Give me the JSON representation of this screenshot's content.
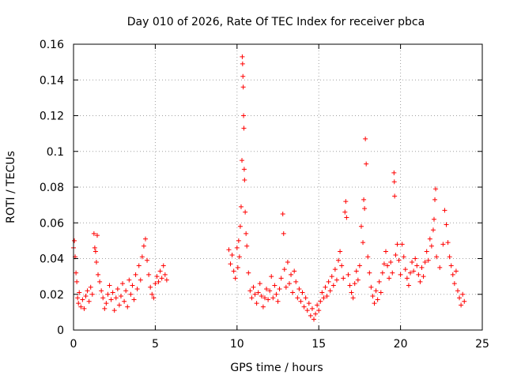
{
  "chart_data": {
    "type": "scatter",
    "title": "Day 010 of 2026, Rate Of TEC Index for receiver pbca",
    "xlabel": "GPS time / hours",
    "ylabel": "ROTI / TECUs",
    "xlim": [
      0,
      25
    ],
    "ylim": [
      0,
      0.16
    ],
    "xticks": [
      0,
      5,
      10,
      15,
      20,
      25
    ],
    "yticks": [
      0,
      0.02,
      0.04,
      0.06,
      0.08,
      0.1,
      0.12,
      0.14,
      0.16
    ],
    "xtick_labels": [
      "0",
      "5",
      "10",
      "15",
      "20",
      "25"
    ],
    "ytick_labels": [
      "0",
      "0.02",
      "0.04",
      "0.06",
      "0.08",
      "0.1",
      "0.12",
      "0.14",
      "0.16"
    ],
    "grid": true,
    "marker": "+",
    "color": "#ff0000",
    "series": [
      {
        "name": "ROTI",
        "points": [
          [
            0.0,
            0.046
          ],
          [
            0.05,
            0.05
          ],
          [
            0.1,
            0.041
          ],
          [
            0.15,
            0.032
          ],
          [
            0.2,
            0.027
          ],
          [
            0.25,
            0.018
          ],
          [
            0.3,
            0.015
          ],
          [
            0.35,
            0.021
          ],
          [
            0.45,
            0.013
          ],
          [
            0.55,
            0.017
          ],
          [
            0.65,
            0.012
          ],
          [
            0.75,
            0.019
          ],
          [
            0.85,
            0.022
          ],
          [
            0.95,
            0.016
          ],
          [
            1.05,
            0.024
          ],
          [
            1.15,
            0.02
          ],
          [
            1.25,
            0.054
          ],
          [
            1.3,
            0.046
          ],
          [
            1.35,
            0.044
          ],
          [
            1.4,
            0.038
          ],
          [
            1.45,
            0.053
          ],
          [
            1.5,
            0.031
          ],
          [
            1.6,
            0.027
          ],
          [
            1.7,
            0.022
          ],
          [
            1.8,
            0.018
          ],
          [
            1.9,
            0.012
          ],
          [
            2.0,
            0.015
          ],
          [
            2.1,
            0.02
          ],
          [
            2.2,
            0.025
          ],
          [
            2.3,
            0.017
          ],
          [
            2.4,
            0.021
          ],
          [
            2.5,
            0.011
          ],
          [
            2.6,
            0.018
          ],
          [
            2.7,
            0.023
          ],
          [
            2.8,
            0.014
          ],
          [
            2.9,
            0.019
          ],
          [
            3.0,
            0.026
          ],
          [
            3.1,
            0.016
          ],
          [
            3.2,
            0.022
          ],
          [
            3.3,
            0.013
          ],
          [
            3.4,
            0.028
          ],
          [
            3.5,
            0.02
          ],
          [
            3.6,
            0.025
          ],
          [
            3.7,
            0.017
          ],
          [
            3.8,
            0.031
          ],
          [
            3.9,
            0.023
          ],
          [
            4.0,
            0.036
          ],
          [
            4.1,
            0.028
          ],
          [
            4.2,
            0.041
          ],
          [
            4.3,
            0.047
          ],
          [
            4.4,
            0.051
          ],
          [
            4.5,
            0.039
          ],
          [
            4.6,
            0.031
          ],
          [
            4.7,
            0.024
          ],
          [
            4.8,
            0.02
          ],
          [
            4.9,
            0.018
          ],
          [
            5.0,
            0.026
          ],
          [
            5.1,
            0.03
          ],
          [
            5.2,
            0.027
          ],
          [
            5.3,
            0.033
          ],
          [
            5.4,
            0.029
          ],
          [
            5.5,
            0.036
          ],
          [
            5.6,
            0.031
          ],
          [
            5.7,
            0.028
          ],
          [
            9.5,
            0.045
          ],
          [
            9.6,
            0.037
          ],
          [
            9.7,
            0.042
          ],
          [
            9.8,
            0.033
          ],
          [
            9.9,
            0.029
          ],
          [
            10.0,
            0.046
          ],
          [
            10.05,
            0.035
          ],
          [
            10.1,
            0.05
          ],
          [
            10.15,
            0.041
          ],
          [
            10.2,
            0.058
          ],
          [
            10.25,
            0.069
          ],
          [
            10.3,
            0.095
          ],
          [
            10.32,
            0.153
          ],
          [
            10.34,
            0.149
          ],
          [
            10.36,
            0.142
          ],
          [
            10.38,
            0.136
          ],
          [
            10.4,
            0.12
          ],
          [
            10.42,
            0.113
          ],
          [
            10.44,
            0.09
          ],
          [
            10.46,
            0.084
          ],
          [
            10.5,
            0.066
          ],
          [
            10.55,
            0.054
          ],
          [
            10.6,
            0.047
          ],
          [
            10.7,
            0.032
          ],
          [
            10.8,
            0.022
          ],
          [
            10.9,
            0.018
          ],
          [
            11.0,
            0.024
          ],
          [
            11.1,
            0.02
          ],
          [
            11.2,
            0.015
          ],
          [
            11.3,
            0.021
          ],
          [
            11.4,
            0.026
          ],
          [
            11.5,
            0.019
          ],
          [
            11.6,
            0.013
          ],
          [
            11.7,
            0.018
          ],
          [
            11.8,
            0.023
          ],
          [
            11.9,
            0.017
          ],
          [
            12.0,
            0.022
          ],
          [
            12.1,
            0.03
          ],
          [
            12.2,
            0.018
          ],
          [
            12.3,
            0.025
          ],
          [
            12.4,
            0.02
          ],
          [
            12.5,
            0.016
          ],
          [
            12.6,
            0.023
          ],
          [
            12.7,
            0.029
          ],
          [
            12.8,
            0.065
          ],
          [
            12.85,
            0.054
          ],
          [
            12.9,
            0.034
          ],
          [
            13.0,
            0.024
          ],
          [
            13.1,
            0.038
          ],
          [
            13.2,
            0.026
          ],
          [
            13.3,
            0.031
          ],
          [
            13.4,
            0.021
          ],
          [
            13.5,
            0.033
          ],
          [
            13.6,
            0.027
          ],
          [
            13.7,
            0.018
          ],
          [
            13.8,
            0.023
          ],
          [
            13.9,
            0.016
          ],
          [
            14.0,
            0.021
          ],
          [
            14.1,
            0.013
          ],
          [
            14.2,
            0.018
          ],
          [
            14.3,
            0.011
          ],
          [
            14.4,
            0.015
          ],
          [
            14.5,
            0.008
          ],
          [
            14.6,
            0.012
          ],
          [
            14.7,
            0.006
          ],
          [
            14.8,
            0.009
          ],
          [
            14.9,
            0.014
          ],
          [
            15.0,
            0.011
          ],
          [
            15.1,
            0.016
          ],
          [
            15.2,
            0.021
          ],
          [
            15.3,
            0.018
          ],
          [
            15.4,
            0.024
          ],
          [
            15.5,
            0.019
          ],
          [
            15.6,
            0.027
          ],
          [
            15.7,
            0.022
          ],
          [
            15.8,
            0.03
          ],
          [
            15.9,
            0.025
          ],
          [
            16.0,
            0.034
          ],
          [
            16.1,
            0.028
          ],
          [
            16.2,
            0.039
          ],
          [
            16.3,
            0.044
          ],
          [
            16.4,
            0.036
          ],
          [
            16.5,
            0.029
          ],
          [
            16.6,
            0.066
          ],
          [
            16.65,
            0.072
          ],
          [
            16.7,
            0.063
          ],
          [
            16.8,
            0.031
          ],
          [
            16.9,
            0.025
          ],
          [
            17.0,
            0.021
          ],
          [
            17.1,
            0.018
          ],
          [
            17.2,
            0.026
          ],
          [
            17.3,
            0.033
          ],
          [
            17.4,
            0.028
          ],
          [
            17.5,
            0.036
          ],
          [
            17.6,
            0.058
          ],
          [
            17.7,
            0.049
          ],
          [
            17.75,
            0.073
          ],
          [
            17.8,
            0.068
          ],
          [
            17.85,
            0.107
          ],
          [
            17.9,
            0.093
          ],
          [
            18.0,
            0.041
          ],
          [
            18.1,
            0.032
          ],
          [
            18.2,
            0.024
          ],
          [
            18.3,
            0.019
          ],
          [
            18.4,
            0.015
          ],
          [
            18.5,
            0.022
          ],
          [
            18.6,
            0.017
          ],
          [
            18.7,
            0.027
          ],
          [
            18.8,
            0.021
          ],
          [
            18.9,
            0.032
          ],
          [
            19.0,
            0.037
          ],
          [
            19.1,
            0.044
          ],
          [
            19.2,
            0.036
          ],
          [
            19.3,
            0.029
          ],
          [
            19.4,
            0.038
          ],
          [
            19.5,
            0.032
          ],
          [
            19.6,
            0.088
          ],
          [
            19.62,
            0.083
          ],
          [
            19.64,
            0.075
          ],
          [
            19.7,
            0.042
          ],
          [
            19.8,
            0.048
          ],
          [
            19.9,
            0.039
          ],
          [
            20.0,
            0.031
          ],
          [
            20.1,
            0.048
          ],
          [
            20.2,
            0.041
          ],
          [
            20.3,
            0.034
          ],
          [
            20.4,
            0.029
          ],
          [
            20.5,
            0.025
          ],
          [
            20.6,
            0.032
          ],
          [
            20.7,
            0.038
          ],
          [
            20.8,
            0.033
          ],
          [
            20.9,
            0.04
          ],
          [
            21.0,
            0.036
          ],
          [
            21.1,
            0.031
          ],
          [
            21.2,
            0.027
          ],
          [
            21.3,
            0.035
          ],
          [
            21.4,
            0.03
          ],
          [
            21.5,
            0.038
          ],
          [
            21.6,
            0.044
          ],
          [
            21.7,
            0.039
          ],
          [
            21.8,
            0.051
          ],
          [
            21.9,
            0.047
          ],
          [
            22.0,
            0.056
          ],
          [
            22.05,
            0.062
          ],
          [
            22.1,
            0.073
          ],
          [
            22.15,
            0.079
          ],
          [
            22.2,
            0.041
          ],
          [
            22.4,
            0.035
          ],
          [
            22.6,
            0.048
          ],
          [
            22.7,
            0.067
          ],
          [
            22.8,
            0.059
          ],
          [
            22.9,
            0.049
          ],
          [
            23.0,
            0.041
          ],
          [
            23.1,
            0.036
          ],
          [
            23.2,
            0.031
          ],
          [
            23.3,
            0.026
          ],
          [
            23.4,
            0.033
          ],
          [
            23.5,
            0.022
          ],
          [
            23.6,
            0.018
          ],
          [
            23.7,
            0.014
          ],
          [
            23.8,
            0.02
          ],
          [
            23.9,
            0.016
          ]
        ]
      }
    ]
  }
}
